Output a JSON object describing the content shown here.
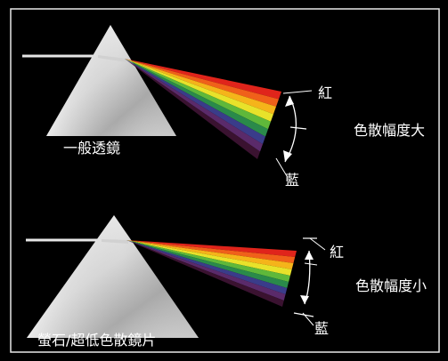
{
  "panels": [
    {
      "prism_label": "一般透鏡",
      "top_color_label": "紅",
      "bottom_color_label": "藍",
      "dispersion_label": "色散幅度大"
    },
    {
      "prism_label": "螢石/超低色散鏡片",
      "top_color_label": "紅",
      "bottom_color_label": "藍",
      "dispersion_label": "色散幅度小"
    }
  ],
  "colors": {
    "background": "#000000",
    "frame": "#e8e8e8",
    "spectrum": [
      "#e0241b",
      "#f0601a",
      "#f5b41a",
      "#e8e22a",
      "#5fb83a",
      "#2a8a4a",
      "#3a3c8a",
      "#5a2a6a",
      "#3a1230"
    ]
  }
}
